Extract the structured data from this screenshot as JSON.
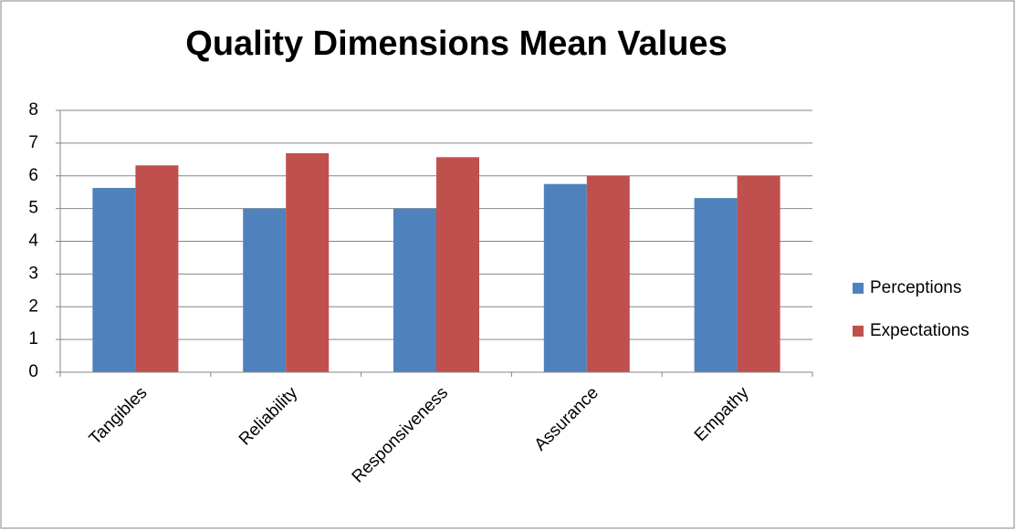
{
  "chart_data": {
    "type": "bar",
    "title": "Quality Dimensions Mean Values",
    "categories": [
      "Tangibles",
      "Reliability",
      "Responsiveness",
      "Assurance",
      "Empathy"
    ],
    "series": [
      {
        "name": "Perceptions",
        "color": "#4f81bd",
        "values": [
          5.63,
          5.0,
          5.0,
          5.75,
          5.32
        ]
      },
      {
        "name": "Expectations",
        "color": "#c0504d",
        "values": [
          6.32,
          6.69,
          6.57,
          6.0,
          6.0
        ]
      }
    ],
    "ylim": [
      0,
      8
    ],
    "yticks": [
      0,
      1,
      2,
      3,
      4,
      5,
      6,
      7,
      8
    ],
    "grid": true,
    "legend": "right"
  }
}
